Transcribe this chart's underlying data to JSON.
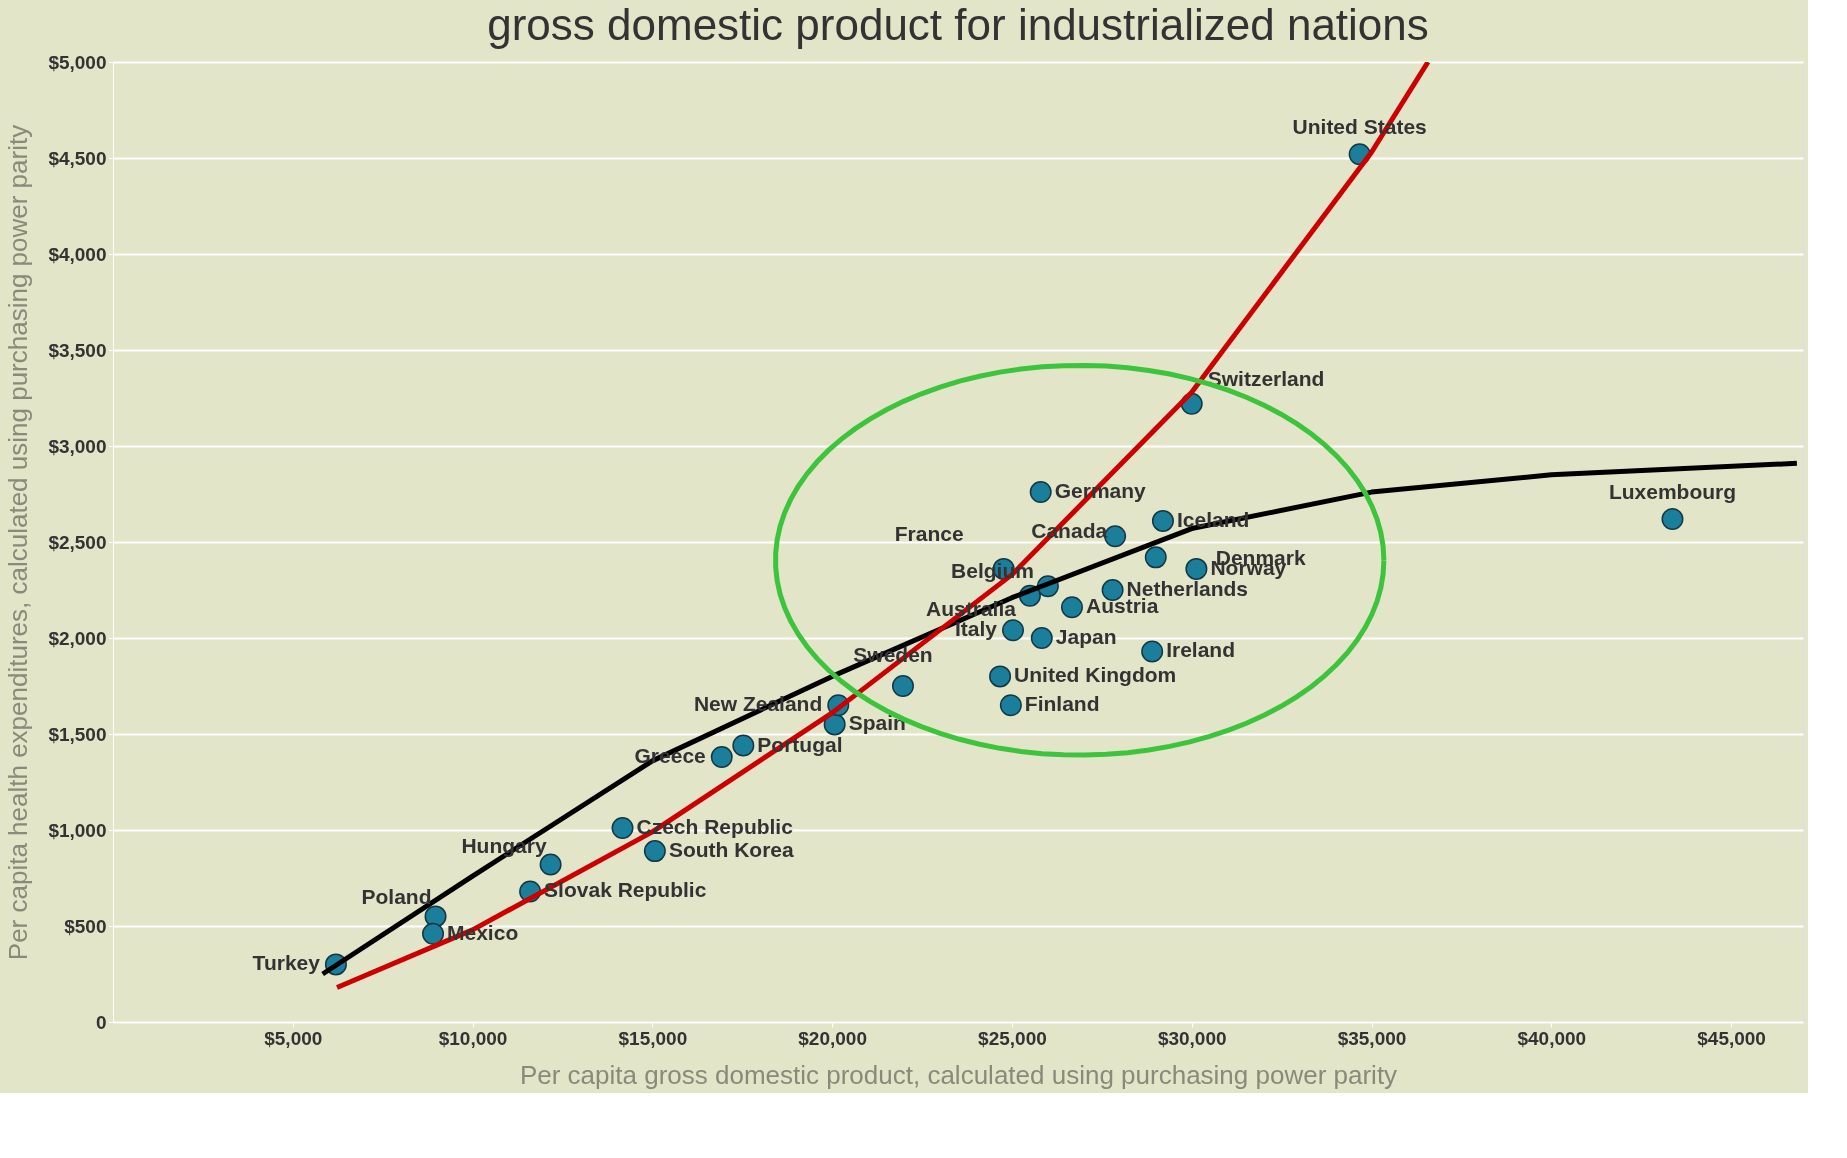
{
  "chart_data": {
    "type": "scatter",
    "title": "gross domestic product for industrialized nations",
    "xlabel": "Per capita gross domestic product, calculated using purchasing power parity",
    "ylabel": "Per capita health expenditures, calculated using purchasing power parity",
    "xlim": [
      0,
      47000
    ],
    "ylim": [
      0,
      5000
    ],
    "xticks": [
      {
        "value": 5000,
        "label": "$5,000"
      },
      {
        "value": 10000,
        "label": "$10,000"
      },
      {
        "value": 15000,
        "label": "$15,000"
      },
      {
        "value": 20000,
        "label": "$20,000"
      },
      {
        "value": 25000,
        "label": "$25,000"
      },
      {
        "value": 30000,
        "label": "$30,000"
      },
      {
        "value": 35000,
        "label": "$35,000"
      },
      {
        "value": 40000,
        "label": "$40,000"
      },
      {
        "value": 45000,
        "label": "$45,000"
      }
    ],
    "yticks": [
      0,
      {
        "value": 500,
        "label": "$500"
      },
      {
        "value": 1000,
        "label": "$1,000"
      },
      {
        "value": 1500,
        "label": "$1,500"
      },
      {
        "value": 2000,
        "label": "$2,000"
      },
      {
        "value": 2500,
        "label": "$2,500"
      },
      {
        "value": 3000,
        "label": "$3,000"
      },
      {
        "value": 3500,
        "label": "$3,500"
      },
      {
        "value": 4000,
        "label": "$4,000"
      },
      {
        "value": 4500,
        "label": "$4,500"
      },
      {
        "value": 5000,
        "label": "$5,000"
      }
    ],
    "grid": "y",
    "series": [
      {
        "marker": "circle",
        "color": "#1b7f9b",
        "x": [
          6200,
          8970,
          8900,
          11600,
          12170,
          14170,
          15070,
          16930,
          17530,
          20070,
          20170,
          21970,
          24670,
          24970,
          25030,
          25830,
          24770,
          26000,
          25500,
          26670,
          25800,
          27870,
          27800,
          29200,
          29000,
          30130,
          28900,
          30000,
          34670,
          43370
        ],
        "values": [
          300,
          550,
          460,
          680,
          820,
          1010,
          890,
          1380,
          1440,
          1550,
          1650,
          1750,
          1800,
          1650,
          2040,
          2000,
          2360,
          2270,
          2220,
          2160,
          2760,
          2530,
          2250,
          2610,
          2420,
          2360,
          1930,
          3220,
          4520,
          2620
        ]
      },
      {
        "type": "line",
        "color": "#000000",
        "line_style": "solid",
        "x": [
          5830,
          10000,
          15000,
          20000,
          25000,
          30000,
          35000,
          40000,
          46830
        ],
        "values": [
          250,
          760,
          1360,
          1800,
          2210,
          2570,
          2760,
          2850,
          2910
        ]
      },
      {
        "type": "line",
        "color": "#cc0000",
        "line_style": "solid",
        "x": [
          6230,
          10000,
          15000,
          20000,
          25000,
          30000,
          35000,
          36570
        ],
        "values": [
          180,
          480,
          990,
          1610,
          2330,
          3280,
          4530,
          5000
        ]
      }
    ],
    "annotations": [
      {
        "text": "Turkey",
        "x": 6200,
        "y": 300
      },
      {
        "text": "Poland",
        "x": 8970,
        "y": 550
      },
      {
        "text": "Mexico",
        "x": 8900,
        "y": 460
      },
      {
        "text": "Slovak Republic",
        "x": 11600,
        "y": 680
      },
      {
        "text": "Hungary",
        "x": 12170,
        "y": 820
      },
      {
        "text": "Czech Republic",
        "x": 14170,
        "y": 1010
      },
      {
        "text": "South Korea",
        "x": 15070,
        "y": 890
      },
      {
        "text": "Greece",
        "x": 16930,
        "y": 1380
      },
      {
        "text": "Portugal",
        "x": 17530,
        "y": 1440
      },
      {
        "text": "Spain",
        "x": 20070,
        "y": 1550
      },
      {
        "text": "New Zealand",
        "x": 20170,
        "y": 1650
      },
      {
        "text": "Sweden",
        "x": 21970,
        "y": 1750
      },
      {
        "text": "United Kingdom",
        "x": 24670,
        "y": 1800
      },
      {
        "text": "Finland",
        "x": 24970,
        "y": 1650
      },
      {
        "text": "Italy",
        "x": 25030,
        "y": 2040
      },
      {
        "text": "Japan",
        "x": 25830,
        "y": 2000
      },
      {
        "text": "France",
        "x": 24770,
        "y": 2360
      },
      {
        "text": "Belgium",
        "x": 26000,
        "y": 2270
      },
      {
        "text": "Australia",
        "x": 25500,
        "y": 2220
      },
      {
        "text": "Austria",
        "x": 26670,
        "y": 2160
      },
      {
        "text": "Germany",
        "x": 25800,
        "y": 2760
      },
      {
        "text": "Canada",
        "x": 27870,
        "y": 2530
      },
      {
        "text": "Netherlands",
        "x": 27800,
        "y": 2250
      },
      {
        "text": "Iceland",
        "x": 29200,
        "y": 2610
      },
      {
        "text": "Denmark",
        "x": 29000,
        "y": 2420
      },
      {
        "text": "Norway",
        "x": 30130,
        "y": 2360
      },
      {
        "text": "Ireland",
        "x": 28900,
        "y": 1930
      },
      {
        "text": "Switzerland",
        "x": 30000,
        "y": 3220
      },
      {
        "text": "United States",
        "x": 34670,
        "y": 4520
      },
      {
        "text": "Luxembourg",
        "x": 43370,
        "y": 2620
      }
    ]
  }
}
